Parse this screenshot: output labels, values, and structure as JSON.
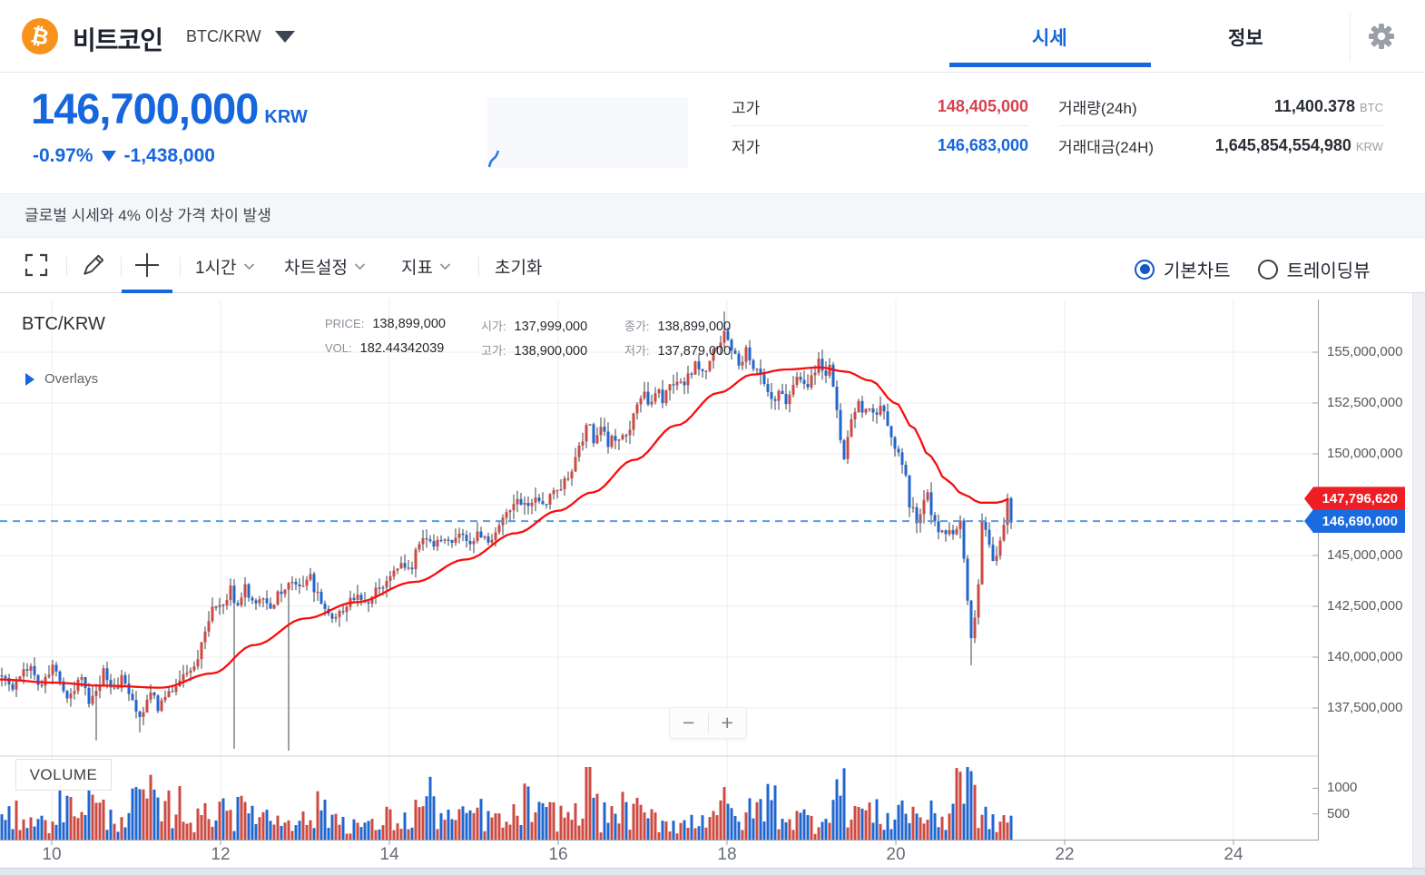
{
  "header": {
    "coin_name": "비트코인",
    "pair": "BTC/KRW",
    "tab_market": "시세",
    "tab_info": "정보"
  },
  "price_panel": {
    "price": "146,700,000",
    "currency": "KRW",
    "change_pct": "-0.97%",
    "change_amt": "-1,438,000"
  },
  "stats": {
    "high_label": "고가",
    "high_value": "148,405,000",
    "low_label": "저가",
    "low_value": "146,683,000",
    "vol_label": "거래량(24h)",
    "vol_value": "11,400.378",
    "vol_unit": "BTC",
    "amt_label": "거래대금(24H)",
    "amt_value": "1,645,854,554,980",
    "amt_unit": "KRW"
  },
  "notice_text": "글로벌 시세와 4% 이상 가격 차이 발생",
  "toolbar": {
    "interval": "1시간",
    "chart_settings": "차트설정",
    "indicators": "지표",
    "reset": "초기화",
    "basic_chart": "기본차트",
    "tradingview": "트레이딩뷰"
  },
  "chart_info": {
    "symbol": "BTC/KRW",
    "price_label": "PRICE:",
    "price": "138,899,000",
    "vol_label": "VOL:",
    "vol": "182.44342039",
    "open_label": "시가:",
    "open": "137,999,000",
    "high_label": "고가:",
    "high": "138,900,000",
    "close_label": "종가:",
    "close": "138,899,000",
    "low_label": "저가:",
    "low": "137,879,000",
    "overlays_label": "Overlays",
    "volume_pane_label": "VOLUME"
  },
  "zoom_controls": {
    "minus": "−",
    "plus": "+"
  },
  "badges": {
    "ma_price": "147,796,620",
    "current_price": "146,690,000"
  },
  "colors": {
    "accent_blue": "#1666dd",
    "rise_red": "#d5424d",
    "candle_up": "#cd4a42",
    "candle_down": "#2066cf",
    "wick": "#3a4149",
    "ma_line": "#f90d0d",
    "ref_line": "#4f96e8",
    "badge_red": "#ef1d24",
    "badge_blue": "#1a6be0",
    "grid": "#ececec",
    "axis": "#9aa0a6"
  },
  "chart_data": {
    "type": "candlestick+volume",
    "symbol": "BTC/KRW",
    "interval": "1시간",
    "price_unit": "KRW millions",
    "x_unit": "day of month",
    "x_ticks": [
      10,
      12,
      14,
      16,
      18,
      20,
      22,
      24
    ],
    "y_ticks": [
      {
        "v": 155,
        "label": "155,000,000"
      },
      {
        "v": 152.5,
        "label": "152,500,000"
      },
      {
        "v": 150,
        "label": "150,000,000"
      },
      {
        "v": 145,
        "label": "145,000,000"
      },
      {
        "v": 142.5,
        "label": "142,500,000"
      },
      {
        "v": 140,
        "label": "140,000,000"
      },
      {
        "v": 137.5,
        "label": "137,500,000"
      }
    ],
    "y_grid": [
      155,
      152.5,
      150,
      147.5,
      145,
      142.5,
      140,
      137.5
    ],
    "vol_ticks": [
      {
        "v": 1000,
        "label": "1000"
      },
      {
        "v": 500,
        "label": "500"
      }
    ],
    "ref_price_m": 146.69,
    "ma_last_m": 147.7966,
    "close_path": [
      [
        9.39,
        139.3
      ],
      [
        9.55,
        138.5
      ],
      [
        9.7,
        139.6
      ],
      [
        9.87,
        138.7
      ],
      [
        10.03,
        139.6
      ],
      [
        10.19,
        138.1
      ],
      [
        10.35,
        138.9
      ],
      [
        10.46,
        137.5
      ],
      [
        10.52,
        138.5
      ],
      [
        10.62,
        139.2
      ],
      [
        10.73,
        138.3
      ],
      [
        10.84,
        139.0
      ],
      [
        10.95,
        137.9
      ],
      [
        11.05,
        137.2
      ],
      [
        11.16,
        138.2
      ],
      [
        11.27,
        137.5
      ],
      [
        11.38,
        138.4
      ],
      [
        11.48,
        138.7
      ],
      [
        11.59,
        139.1
      ],
      [
        11.7,
        139.8
      ],
      [
        11.81,
        141.0
      ],
      [
        11.91,
        142.3
      ],
      [
        12.02,
        142.7
      ],
      [
        12.13,
        143.3
      ],
      [
        12.2,
        142.4
      ],
      [
        12.29,
        143.4
      ],
      [
        12.4,
        142.7
      ],
      [
        12.51,
        143.0
      ],
      [
        12.61,
        142.5
      ],
      [
        12.72,
        143.3
      ],
      [
        12.83,
        143.9
      ],
      [
        12.94,
        143.4
      ],
      [
        13.04,
        144.0
      ],
      [
        13.15,
        143.1
      ],
      [
        13.26,
        142.2
      ],
      [
        13.37,
        141.9
      ],
      [
        13.47,
        142.5
      ],
      [
        13.58,
        142.9
      ],
      [
        13.69,
        142.6
      ],
      [
        13.8,
        143.1
      ],
      [
        13.9,
        143.5
      ],
      [
        14.01,
        143.9
      ],
      [
        14.12,
        144.6
      ],
      [
        14.23,
        144.2
      ],
      [
        14.33,
        145.3
      ],
      [
        14.44,
        145.9
      ],
      [
        14.55,
        145.5
      ],
      [
        14.66,
        145.9
      ],
      [
        14.76,
        145.6
      ],
      [
        14.87,
        146.0
      ],
      [
        14.98,
        145.7
      ],
      [
        15.09,
        146.1
      ],
      [
        15.19,
        145.8
      ],
      [
        15.3,
        146.4
      ],
      [
        15.41,
        147.0
      ],
      [
        15.52,
        147.7
      ],
      [
        15.62,
        147.3
      ],
      [
        15.73,
        147.9
      ],
      [
        15.84,
        147.6
      ],
      [
        15.95,
        148.1
      ],
      [
        16.05,
        148.5
      ],
      [
        16.16,
        149.3
      ],
      [
        16.27,
        150.4
      ],
      [
        16.35,
        151.5
      ],
      [
        16.43,
        150.7
      ],
      [
        16.51,
        151.1
      ],
      [
        16.59,
        150.5
      ],
      [
        16.68,
        150.9
      ],
      [
        16.75,
        150.6
      ],
      [
        16.83,
        151.3
      ],
      [
        16.91,
        152.3
      ],
      [
        17.0,
        152.9
      ],
      [
        17.08,
        152.4
      ],
      [
        17.15,
        153.1
      ],
      [
        17.24,
        152.7
      ],
      [
        17.32,
        153.4
      ],
      [
        17.4,
        153.7
      ],
      [
        17.47,
        153.3
      ],
      [
        17.56,
        154.0
      ],
      [
        17.65,
        154.4
      ],
      [
        17.72,
        153.9
      ],
      [
        17.8,
        154.7
      ],
      [
        17.88,
        155.2
      ],
      [
        17.97,
        155.9
      ],
      [
        18.05,
        155.0
      ],
      [
        18.14,
        154.5
      ],
      [
        18.23,
        155.0
      ],
      [
        18.31,
        154.4
      ],
      [
        18.4,
        153.7
      ],
      [
        18.47,
        152.9
      ],
      [
        18.55,
        152.4
      ],
      [
        18.61,
        153.0
      ],
      [
        18.69,
        152.5
      ],
      [
        18.76,
        153.2
      ],
      [
        18.85,
        153.8
      ],
      [
        18.94,
        153.4
      ],
      [
        19.01,
        154.1
      ],
      [
        19.09,
        154.5
      ],
      [
        19.15,
        154.0
      ],
      [
        19.23,
        154.3
      ],
      [
        19.28,
        152.9
      ],
      [
        19.33,
        150.7
      ],
      [
        19.39,
        149.9
      ],
      [
        19.44,
        151.0
      ],
      [
        19.49,
        151.9
      ],
      [
        19.55,
        152.4
      ],
      [
        19.62,
        152.0
      ],
      [
        19.69,
        152.5
      ],
      [
        19.76,
        151.9
      ],
      [
        19.84,
        152.2
      ],
      [
        19.9,
        151.3
      ],
      [
        19.98,
        150.5
      ],
      [
        20.05,
        149.9
      ],
      [
        20.12,
        148.7
      ],
      [
        20.18,
        147.3
      ],
      [
        20.25,
        146.7
      ],
      [
        20.31,
        147.5
      ],
      [
        20.38,
        147.9
      ],
      [
        20.44,
        146.9
      ],
      [
        20.51,
        146.2
      ],
      [
        20.57,
        146.0
      ],
      [
        20.63,
        146.5
      ],
      [
        20.7,
        146.1
      ],
      [
        20.76,
        146.7
      ],
      [
        20.81,
        144.9
      ],
      [
        20.85,
        142.7
      ],
      [
        20.89,
        140.7
      ],
      [
        20.94,
        141.9
      ],
      [
        20.98,
        143.5
      ],
      [
        21.02,
        146.6
      ],
      [
        21.06,
        146.1
      ],
      [
        21.11,
        145.3
      ],
      [
        21.15,
        144.7
      ],
      [
        21.19,
        145.0
      ],
      [
        21.24,
        145.7
      ],
      [
        21.28,
        146.4
      ],
      [
        21.32,
        147.7
      ],
      [
        21.37,
        146.7
      ]
    ],
    "ma_path": [
      [
        9.39,
        138.9
      ],
      [
        10.0,
        138.75
      ],
      [
        10.6,
        138.6
      ],
      [
        11.3,
        138.5
      ],
      [
        11.9,
        139.2
      ],
      [
        12.4,
        140.6
      ],
      [
        13.0,
        141.9
      ],
      [
        13.6,
        142.7
      ],
      [
        14.3,
        143.7
      ],
      [
        14.9,
        144.8
      ],
      [
        15.5,
        146.1
      ],
      [
        16.0,
        147.2
      ],
      [
        16.4,
        148.1
      ],
      [
        16.9,
        149.7
      ],
      [
        17.4,
        151.4
      ],
      [
        17.9,
        153.0
      ],
      [
        18.3,
        153.9
      ],
      [
        18.7,
        154.15
      ],
      [
        19.1,
        154.25
      ],
      [
        19.4,
        154.05
      ],
      [
        19.7,
        153.6
      ],
      [
        20.0,
        152.5
      ],
      [
        20.2,
        151.3
      ],
      [
        20.4,
        149.9
      ],
      [
        20.6,
        148.7
      ],
      [
        20.8,
        148.0
      ],
      [
        21.0,
        147.6
      ],
      [
        21.2,
        147.6
      ],
      [
        21.37,
        147.8
      ]
    ],
    "wick_spikes": [
      {
        "day": 10.52,
        "low": 135.9
      },
      {
        "day": 11.05,
        "low": 136.3
      },
      {
        "day": 12.15,
        "low": 135.5
      },
      {
        "day": 12.8,
        "low": 135.4
      },
      {
        "day": 17.97,
        "high": 157.0
      },
      {
        "day": 20.89,
        "low": 139.6
      }
    ],
    "volume_profile": [
      [
        9.4,
        350
      ],
      [
        9.7,
        500
      ],
      [
        9.9,
        300
      ],
      [
        10.1,
        700
      ],
      [
        10.25,
        550
      ],
      [
        10.4,
        900
      ],
      [
        10.5,
        650
      ],
      [
        10.7,
        400
      ],
      [
        10.9,
        550
      ],
      [
        11.1,
        850
      ],
      [
        11.3,
        500
      ],
      [
        11.5,
        700
      ],
      [
        11.7,
        350
      ],
      [
        11.9,
        600
      ],
      [
        12.05,
        800
      ],
      [
        12.2,
        500
      ],
      [
        12.4,
        650
      ],
      [
        12.6,
        400
      ],
      [
        12.8,
        500
      ],
      [
        13.0,
        350
      ],
      [
        13.2,
        600
      ],
      [
        13.4,
        400
      ],
      [
        13.6,
        300
      ],
      [
        13.8,
        250
      ],
      [
        14.0,
        400
      ],
      [
        14.2,
        350
      ],
      [
        14.45,
        800
      ],
      [
        14.6,
        500
      ],
      [
        14.8,
        350
      ],
      [
        15.0,
        550
      ],
      [
        15.2,
        400
      ],
      [
        15.4,
        300
      ],
      [
        15.6,
        700
      ],
      [
        15.8,
        450
      ],
      [
        16.0,
        500
      ],
      [
        16.2,
        450
      ],
      [
        16.35,
        1600
      ],
      [
        16.5,
        400
      ],
      [
        16.7,
        600
      ],
      [
        16.9,
        500
      ],
      [
        17.1,
        400
      ],
      [
        17.3,
        350
      ],
      [
        17.5,
        300
      ],
      [
        17.7,
        450
      ],
      [
        17.9,
        700
      ],
      [
        18.1,
        400
      ],
      [
        18.3,
        500
      ],
      [
        18.5,
        800
      ],
      [
        18.7,
        450
      ],
      [
        18.9,
        400
      ],
      [
        19.1,
        350
      ],
      [
        19.25,
        1000
      ],
      [
        19.35,
        900
      ],
      [
        19.5,
        600
      ],
      [
        19.7,
        500
      ],
      [
        19.9,
        400
      ],
      [
        20.05,
        600
      ],
      [
        20.2,
        500
      ],
      [
        20.4,
        450
      ],
      [
        20.6,
        400
      ],
      [
        20.75,
        1300
      ],
      [
        20.85,
        1100
      ],
      [
        20.95,
        700
      ],
      [
        21.05,
        400
      ],
      [
        21.15,
        300
      ],
      [
        21.25,
        350
      ],
      [
        21.37,
        450
      ]
    ]
  }
}
